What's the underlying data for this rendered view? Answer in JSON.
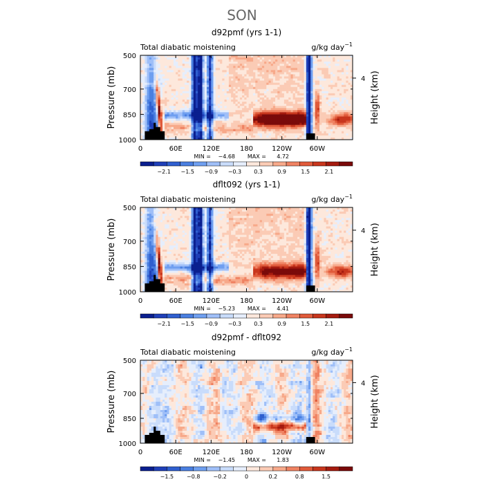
{
  "title": "SON",
  "chart_data": [
    {
      "type": "heatmap",
      "title": "d92pmf (yrs 1-1)",
      "left_label": "Total diabatic moistening",
      "right_label": "g/kg day",
      "right_label_exp": "−1",
      "ylabel": "Pressure (mb)",
      "y2label": "Height (km)",
      "y_ticks": [
        "500",
        "700",
        "850",
        "1000"
      ],
      "y2_ticks": [
        "4"
      ],
      "x_ticks": [
        "0",
        "60E",
        "120E",
        "180",
        "120W",
        "60W"
      ],
      "min_label": "MIN =",
      "min_value": "−4.68",
      "max_label": "MAX =",
      "max_value": "4.72",
      "colorbar_ticks": [
        "−2.1",
        "−1.5",
        "−0.9",
        "−0.3",
        "0.3",
        "0.9",
        "1.5",
        "2.1"
      ],
      "ylim": [
        1000,
        500
      ],
      "xlim": [
        0,
        360
      ]
    },
    {
      "type": "heatmap",
      "title": "dflt092 (yrs 1-1)",
      "left_label": "Total diabatic moistening",
      "right_label": "g/kg day",
      "right_label_exp": "−1",
      "ylabel": "Pressure (mb)",
      "y2label": "Height (km)",
      "y_ticks": [
        "500",
        "700",
        "850",
        "1000"
      ],
      "y2_ticks": [
        "4"
      ],
      "x_ticks": [
        "0",
        "60E",
        "120E",
        "180",
        "120W",
        "60W"
      ],
      "min_label": "MIN =",
      "min_value": "−5.23",
      "max_label": "MAX =",
      "max_value": "4.41",
      "colorbar_ticks": [
        "−2.1",
        "−1.5",
        "−0.9",
        "−0.3",
        "0.3",
        "0.9",
        "1.5",
        "2.1"
      ],
      "ylim": [
        1000,
        500
      ],
      "xlim": [
        0,
        360
      ]
    },
    {
      "type": "heatmap",
      "title": "d92pmf - dflt092",
      "left_label": "Total diabatic moistening",
      "right_label": "g/kg day",
      "right_label_exp": "−1",
      "ylabel": "Pressure (mb)",
      "y2label": "Height (km)",
      "y_ticks": [
        "500",
        "700",
        "850",
        "1000"
      ],
      "y2_ticks": [
        "4"
      ],
      "x_ticks": [
        "0",
        "60E",
        "120E",
        "180",
        "120W",
        "60W"
      ],
      "min_label": "MIN =",
      "min_value": "−1.45",
      "max_label": "MAX =",
      "max_value": "1.83",
      "colorbar_ticks": [
        "−1.5",
        "−0.8",
        "−0.2",
        "0",
        "0.2",
        "0.8",
        "1.5"
      ],
      "ylim": [
        1000,
        500
      ],
      "xlim": [
        0,
        360
      ]
    }
  ],
  "colors": {
    "palette": [
      "#0a1f8f",
      "#1f3fb8",
      "#2f5fcf",
      "#4a7fe0",
      "#6f9ff0",
      "#9fbff8",
      "#c9dcfb",
      "#e6eefc",
      "#fde8dc",
      "#fbcbb5",
      "#f7a98a",
      "#ef8262",
      "#e05a3a",
      "#c8361d",
      "#a51b0f",
      "#7a0a0a"
    ],
    "terrain": "#000000"
  }
}
